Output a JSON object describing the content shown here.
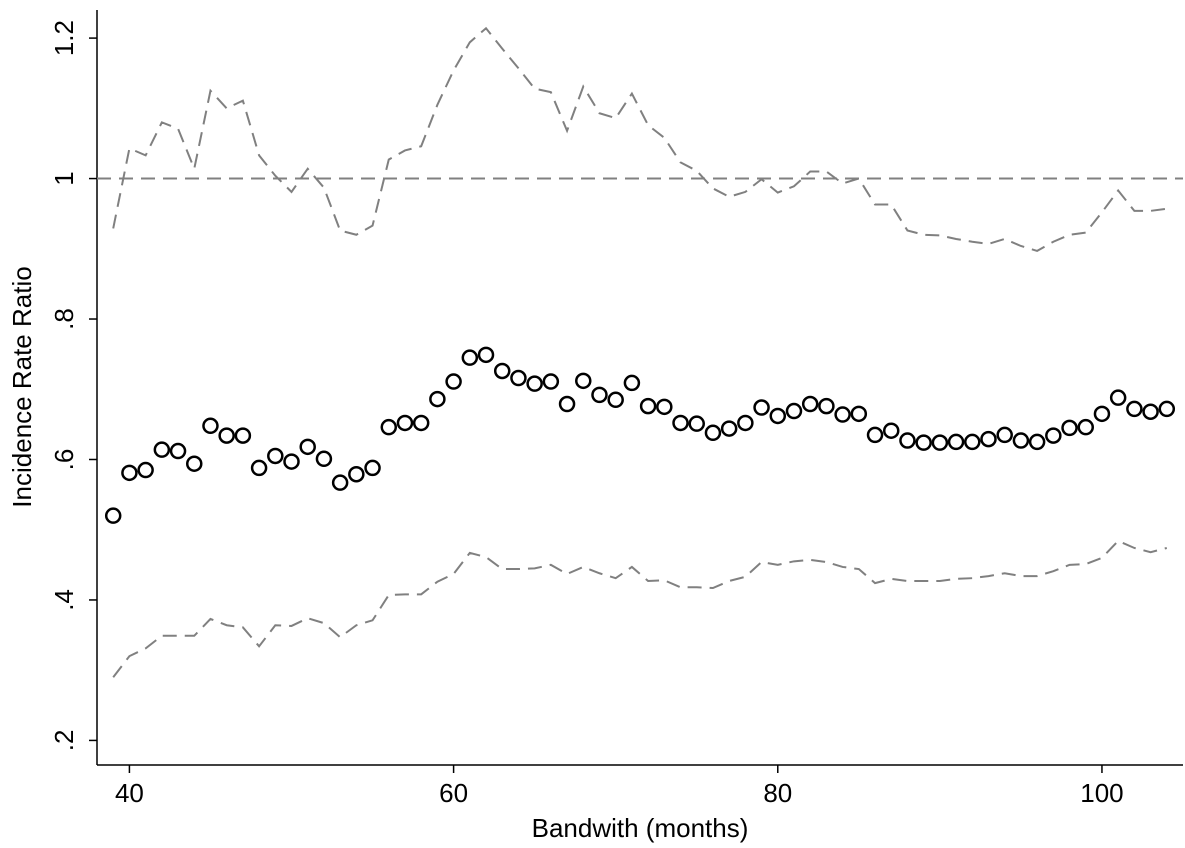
{
  "chart_data": {
    "type": "scatter",
    "xlabel": "Bandwith (months)",
    "ylabel": "Incidence Rate Ratio",
    "x": [
      39,
      40,
      41,
      42,
      43,
      44,
      45,
      46,
      47,
      48,
      49,
      50,
      51,
      52,
      53,
      54,
      55,
      56,
      57,
      58,
      59,
      60,
      61,
      62,
      63,
      64,
      65,
      66,
      67,
      68,
      69,
      70,
      71,
      72,
      73,
      74,
      75,
      76,
      77,
      78,
      79,
      80,
      81,
      82,
      83,
      84,
      85,
      86,
      87,
      88,
      89,
      90,
      91,
      92,
      93,
      94,
      95,
      96,
      97,
      98,
      99,
      100,
      101,
      102,
      103,
      104
    ],
    "series": [
      {
        "style": "markers",
        "color": "#000000",
        "values": [
          0.52,
          0.581,
          0.585,
          0.614,
          0.612,
          0.594,
          0.648,
          0.634,
          0.634,
          0.588,
          0.605,
          0.597,
          0.618,
          0.601,
          0.567,
          0.579,
          0.588,
          0.646,
          0.652,
          0.652,
          0.686,
          0.711,
          0.745,
          0.749,
          0.726,
          0.716,
          0.708,
          0.711,
          0.679,
          0.712,
          0.692,
          0.685,
          0.709,
          0.676,
          0.675,
          0.652,
          0.651,
          0.638,
          0.644,
          0.652,
          0.674,
          0.662,
          0.669,
          0.679,
          0.676,
          0.664,
          0.665,
          0.635,
          0.641,
          0.627,
          0.624,
          0.624,
          0.625,
          0.625,
          0.629,
          0.635,
          0.627,
          0.625,
          0.634,
          0.645,
          0.646,
          0.665,
          0.688,
          0.672,
          0.668,
          0.672
        ]
      },
      {
        "style": "dashed",
        "color": "#808080",
        "values": [
          0.929,
          1.043,
          1.033,
          1.08,
          1.071,
          1.014,
          1.125,
          1.1,
          1.111,
          1.033,
          1.004,
          0.981,
          1.014,
          0.987,
          0.926,
          0.92,
          0.933,
          1.027,
          1.04,
          1.046,
          1.105,
          1.154,
          1.194,
          1.214,
          1.185,
          1.157,
          1.128,
          1.123,
          1.068,
          1.131,
          1.093,
          1.086,
          1.121,
          1.076,
          1.058,
          1.023,
          1.011,
          0.986,
          0.974,
          0.981,
          0.999,
          0.98,
          0.989,
          1.01,
          1.01,
          0.993,
          1.0,
          0.963,
          0.963,
          0.926,
          0.92,
          0.919,
          0.914,
          0.91,
          0.907,
          0.914,
          0.904,
          0.897,
          0.91,
          0.92,
          0.923,
          0.952,
          0.983,
          0.954,
          0.954,
          0.957
        ]
      },
      {
        "style": "dashed",
        "color": "#808080",
        "values": [
          0.29,
          0.32,
          0.331,
          0.349,
          0.349,
          0.349,
          0.373,
          0.364,
          0.361,
          0.334,
          0.364,
          0.363,
          0.374,
          0.367,
          0.347,
          0.364,
          0.371,
          0.407,
          0.408,
          0.408,
          0.426,
          0.437,
          0.467,
          0.461,
          0.444,
          0.444,
          0.445,
          0.45,
          0.437,
          0.447,
          0.438,
          0.431,
          0.447,
          0.427,
          0.428,
          0.418,
          0.418,
          0.417,
          0.427,
          0.433,
          0.454,
          0.45,
          0.455,
          0.457,
          0.454,
          0.447,
          0.444,
          0.424,
          0.43,
          0.427,
          0.427,
          0.427,
          0.43,
          0.431,
          0.434,
          0.438,
          0.434,
          0.434,
          0.441,
          0.45,
          0.451,
          0.46,
          0.484,
          0.474,
          0.468,
          0.474
        ]
      }
    ],
    "hline": 1,
    "hline_color": "#808080",
    "xlim": [
      38,
      105
    ],
    "ylim": [
      0.165,
      1.24
    ],
    "xticks": [
      40,
      60,
      80,
      100
    ],
    "yticks": [
      {
        "value": 0.2,
        "label": ".2"
      },
      {
        "value": 0.4,
        "label": ".4"
      },
      {
        "value": 0.6,
        "label": ".6"
      },
      {
        "value": 0.8,
        "label": ".8"
      },
      1,
      1.2
    ]
  }
}
